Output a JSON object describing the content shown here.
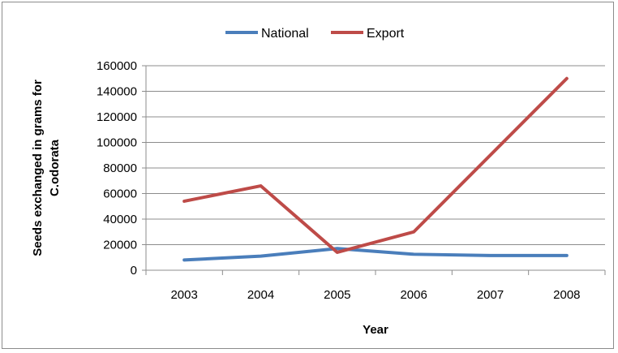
{
  "chart_data": {
    "type": "line",
    "categories": [
      "2003",
      "2004",
      "2005",
      "2006",
      "2007",
      "2008"
    ],
    "series": [
      {
        "name": "National",
        "color": "#4a7ebb",
        "values": [
          8000,
          11000,
          17000,
          12500,
          11500,
          11500
        ]
      },
      {
        "name": "Export",
        "color": "#be4b48",
        "values": [
          54000,
          66000,
          14000,
          30000,
          90000,
          150000
        ]
      }
    ],
    "title": "",
    "xlabel": "Year",
    "ylabel_lines": [
      "Seeds exchanged in grams for",
      "C.odorata"
    ],
    "ylim": [
      0,
      160000
    ],
    "yticks": [
      "0",
      "20000",
      "40000",
      "60000",
      "80000",
      "100000",
      "120000",
      "140000",
      "160000"
    ],
    "grid": true,
    "legend_position": "top"
  }
}
